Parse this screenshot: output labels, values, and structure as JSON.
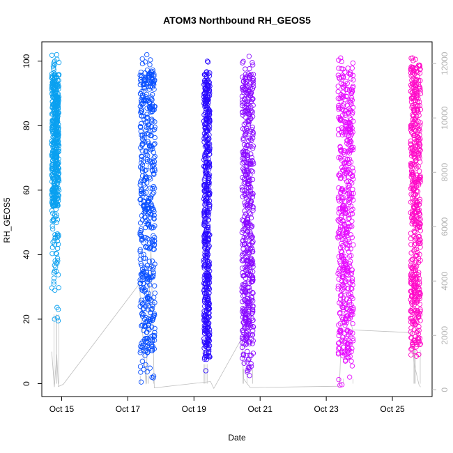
{
  "chart_data": {
    "type": "scatter",
    "title": "ATOM3 Northbound RH_GEOS5",
    "xlabel": "Date",
    "ylabel": "RH_GEOS5",
    "x_ticks": [
      "Oct 15",
      "Oct 17",
      "Oct 19",
      "Oct 21",
      "Oct 23",
      "Oct 25"
    ],
    "x_tick_days": [
      15,
      17,
      19,
      21,
      23,
      25
    ],
    "xlim_days": [
      14.4,
      26.2
    ],
    "ylim": [
      -4,
      106
    ],
    "y_ticks": [
      0,
      20,
      40,
      60,
      80,
      100
    ],
    "y2_ticks": [
      0,
      2000,
      4000,
      6000,
      8000,
      10000,
      12000
    ],
    "y2lim": [
      -250,
      12800
    ],
    "grid": false,
    "legend": "none",
    "secondary_color": "#bebebe",
    "series": [
      {
        "color": "#0aa0f0",
        "day_start": 14.7,
        "day_end": 14.92,
        "y_min": 19.5,
        "y_max": 102,
        "core_low": 55,
        "core_high": 96
      },
      {
        "color": "#0a50ff",
        "day_start": 17.37,
        "day_end": 17.82,
        "y_min": 0.5,
        "y_max": 102,
        "core_low": 10,
        "core_high": 98
      },
      {
        "color": "#2a0aff",
        "day_start": 19.3,
        "day_end": 19.48,
        "y_min": 4,
        "y_max": 100,
        "core_low": 8,
        "core_high": 96
      },
      {
        "color": "#8a0aff",
        "day_start": 20.45,
        "day_end": 20.8,
        "y_min": 2.5,
        "y_max": 101.5,
        "core_low": 12,
        "core_high": 96
      },
      {
        "color": "#e60aff",
        "day_start": 23.35,
        "day_end": 23.82,
        "y_min": -0.5,
        "y_max": 101,
        "core_low": 8,
        "core_high": 97
      },
      {
        "color": "#ff0ac8",
        "day_start": 25.55,
        "day_end": 25.85,
        "y_min": 8.5,
        "y_max": 101,
        "core_low": 12,
        "core_high": 99
      }
    ],
    "secondary_path": [
      [
        14.7,
        1400
      ],
      [
        14.78,
        100
      ],
      [
        14.85,
        1300
      ],
      [
        14.9,
        120
      ],
      [
        15.05,
        200
      ],
      [
        17.35,
        3900
      ],
      [
        17.55,
        200
      ],
      [
        17.7,
        5200
      ],
      [
        17.8,
        70
      ],
      [
        19.5,
        300
      ],
      [
        19.6,
        50
      ],
      [
        20.45,
        1900
      ],
      [
        20.5,
        400
      ],
      [
        20.7,
        80
      ],
      [
        23.4,
        130
      ],
      [
        23.5,
        3600
      ],
      [
        23.8,
        2200
      ],
      [
        25.6,
        2100
      ],
      [
        25.65,
        1000
      ],
      [
        25.8,
        200
      ],
      [
        25.85,
        100
      ]
    ]
  }
}
